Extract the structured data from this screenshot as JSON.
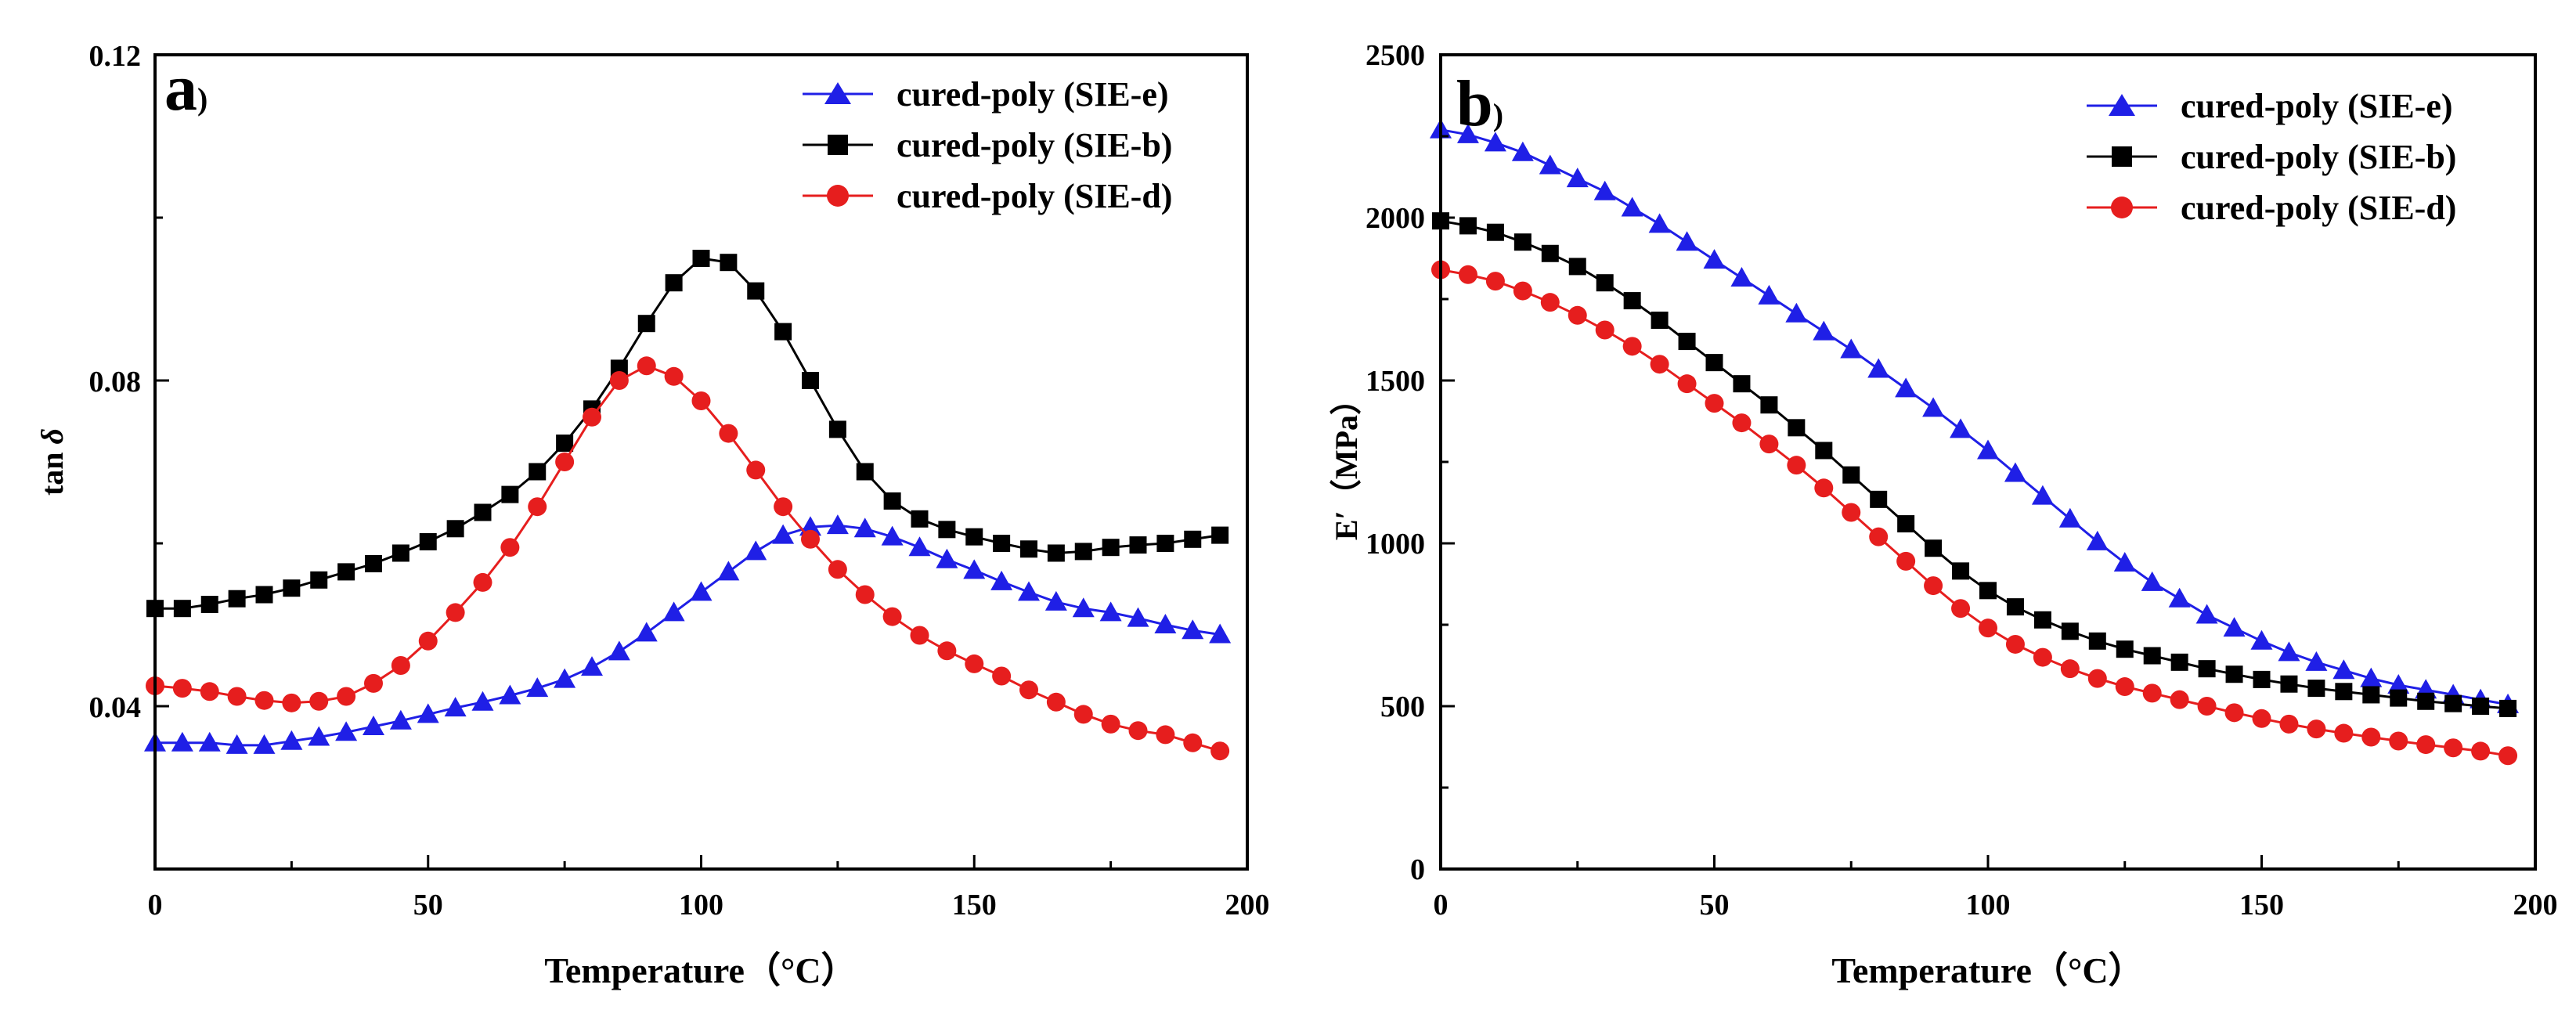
{
  "chart_data": [
    {
      "type": "line",
      "panel_label": "a",
      "panel_paren": ")",
      "xlabel": "Temperature（°C）",
      "ylabel": "tan",
      "ylabel_symbol": "δ",
      "xlim": [
        0,
        200
      ],
      "ylim": [
        0.02,
        0.12
      ],
      "x_ticks": [
        "0",
        "50",
        "100",
        "150",
        "200"
      ],
      "y_ticks": [
        "0.04",
        "0.08",
        "0.12"
      ],
      "legend_position": "top-right",
      "x": [
        0,
        5,
        10,
        15,
        20,
        25,
        30,
        35,
        40,
        45,
        50,
        55,
        60,
        65,
        70,
        75,
        80,
        85,
        90,
        95,
        100,
        105,
        110,
        115,
        120,
        125,
        130,
        135,
        140,
        145,
        150,
        155,
        160,
        165,
        170,
        175,
        180,
        185,
        190,
        195
      ],
      "series": [
        {
          "name": "cured-poly (SIE-e)",
          "color": "#1f1fe6",
          "marker": "triangle",
          "values": [
            0.0355,
            0.0355,
            0.0355,
            0.0352,
            0.0352,
            0.0357,
            0.0362,
            0.0368,
            0.0375,
            0.0382,
            0.039,
            0.0398,
            0.0405,
            0.0413,
            0.0422,
            0.0433,
            0.0448,
            0.0467,
            0.049,
            0.0515,
            0.054,
            0.0565,
            0.059,
            0.061,
            0.062,
            0.0622,
            0.0618,
            0.0608,
            0.0595,
            0.058,
            0.0567,
            0.0553,
            0.054,
            0.0528,
            0.052,
            0.0515,
            0.0508,
            0.05,
            0.0493,
            0.0488
          ]
        },
        {
          "name": "cured-poly (SIE-b)",
          "color": "#000000",
          "marker": "square",
          "values": [
            0.052,
            0.052,
            0.0525,
            0.0532,
            0.0537,
            0.0545,
            0.0555,
            0.0565,
            0.0575,
            0.0588,
            0.0602,
            0.0618,
            0.0638,
            0.066,
            0.0688,
            0.0723,
            0.0765,
            0.0815,
            0.087,
            0.092,
            0.095,
            0.0945,
            0.091,
            0.086,
            0.08,
            0.074,
            0.0688,
            0.0652,
            0.063,
            0.0617,
            0.0608,
            0.06,
            0.0593,
            0.0588,
            0.059,
            0.0595,
            0.0598,
            0.06,
            0.0605,
            0.061
          ]
        },
        {
          "name": "cured-poly (SIE-d)",
          "color": "#e61e1e",
          "marker": "circle",
          "values": [
            0.0425,
            0.0422,
            0.0418,
            0.0412,
            0.0407,
            0.0404,
            0.0406,
            0.0412,
            0.0428,
            0.045,
            0.048,
            0.0515,
            0.0552,
            0.0595,
            0.0645,
            0.07,
            0.0755,
            0.08,
            0.0818,
            0.0805,
            0.0775,
            0.0735,
            0.069,
            0.0645,
            0.0605,
            0.0568,
            0.0537,
            0.051,
            0.0487,
            0.0468,
            0.0452,
            0.0437,
            0.042,
            0.0405,
            0.039,
            0.0378,
            0.037,
            0.0365,
            0.0355,
            0.0345
          ]
        }
      ]
    },
    {
      "type": "line",
      "panel_label": "b",
      "panel_paren": ")",
      "xlabel": "Temperature（°C）",
      "ylabel": "E′（MPa）",
      "xlim": [
        0,
        200
      ],
      "ylim": [
        0,
        2500
      ],
      "x_ticks": [
        "0",
        "50",
        "100",
        "150",
        "200"
      ],
      "y_ticks": [
        "0",
        "500",
        "1000",
        "1500",
        "2000",
        "2500"
      ],
      "legend_position": "top-right",
      "x": [
        0,
        5,
        10,
        15,
        20,
        25,
        30,
        35,
        40,
        45,
        50,
        55,
        60,
        65,
        70,
        75,
        80,
        85,
        90,
        95,
        100,
        105,
        110,
        115,
        120,
        125,
        130,
        135,
        140,
        145,
        150,
        155,
        160,
        165,
        170,
        175,
        180,
        185,
        190,
        195
      ],
      "series": [
        {
          "name": "cured-poly (SIE-e)",
          "color": "#1f1fe6",
          "marker": "triangle",
          "values": [
            2270,
            2255,
            2230,
            2200,
            2160,
            2120,
            2080,
            2030,
            1980,
            1925,
            1870,
            1815,
            1760,
            1705,
            1650,
            1595,
            1535,
            1475,
            1415,
            1350,
            1285,
            1215,
            1145,
            1075,
            1005,
            940,
            880,
            830,
            780,
            740,
            700,
            665,
            635,
            610,
            585,
            565,
            550,
            535,
            520,
            505
          ]
        },
        {
          "name": "cured-poly (SIE-b)",
          "color": "#000000",
          "marker": "square",
          "values": [
            1990,
            1975,
            1955,
            1925,
            1890,
            1850,
            1800,
            1745,
            1685,
            1620,
            1555,
            1490,
            1425,
            1355,
            1285,
            1210,
            1135,
            1060,
            985,
            915,
            855,
            805,
            765,
            730,
            700,
            675,
            655,
            635,
            615,
            598,
            582,
            568,
            555,
            545,
            535,
            525,
            515,
            508,
            500,
            493
          ]
        },
        {
          "name": "cured-poly (SIE-d)",
          "color": "#e61e1e",
          "marker": "circle",
          "values": [
            1840,
            1825,
            1805,
            1775,
            1740,
            1700,
            1655,
            1605,
            1550,
            1490,
            1430,
            1370,
            1305,
            1240,
            1170,
            1095,
            1020,
            945,
            870,
            800,
            740,
            690,
            650,
            615,
            585,
            560,
            540,
            520,
            500,
            480,
            462,
            445,
            430,
            417,
            405,
            393,
            382,
            372,
            362,
            348
          ]
        }
      ]
    }
  ]
}
